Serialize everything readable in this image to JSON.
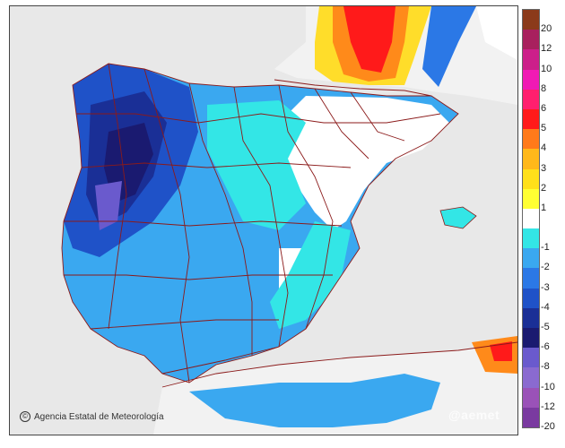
{
  "credit": {
    "icon": "copyright-icon",
    "text": "Agencia Estatal de Meteorología"
  },
  "watermark": "@aemet",
  "legend": {
    "items": [
      {
        "label": "20",
        "color": "#8b3a1a"
      },
      {
        "label": "12",
        "color": "#a8205e"
      },
      {
        "label": "10",
        "color": "#cc1f8a"
      },
      {
        "label": "8",
        "color": "#f01ab4"
      },
      {
        "label": "6",
        "color": "#ff1f6e"
      },
      {
        "label": "5",
        "color": "#ff1a1a"
      },
      {
        "label": "4",
        "color": "#ff7a1a"
      },
      {
        "label": "3",
        "color": "#ffb81a"
      },
      {
        "label": "2",
        "color": "#ffe01a"
      },
      {
        "label": "1",
        "color": "#ffff33"
      },
      {
        "label": "",
        "color": "#ffffff"
      },
      {
        "label": "-1",
        "color": "#33e6e6"
      },
      {
        "label": "-2",
        "color": "#3aa8f0"
      },
      {
        "label": "-3",
        "color": "#2b78e6"
      },
      {
        "label": "-4",
        "color": "#1f52c8"
      },
      {
        "label": "-5",
        "color": "#1a2f96"
      },
      {
        "label": "-6",
        "color": "#1a1a70"
      },
      {
        "label": "-8",
        "color": "#6a5acd"
      },
      {
        "label": "-10",
        "color": "#8a6ad0"
      },
      {
        "label": "-12",
        "color": "#9a52b8"
      },
      {
        "label": "-20",
        "color": "#7a3aa0"
      }
    ]
  }
}
